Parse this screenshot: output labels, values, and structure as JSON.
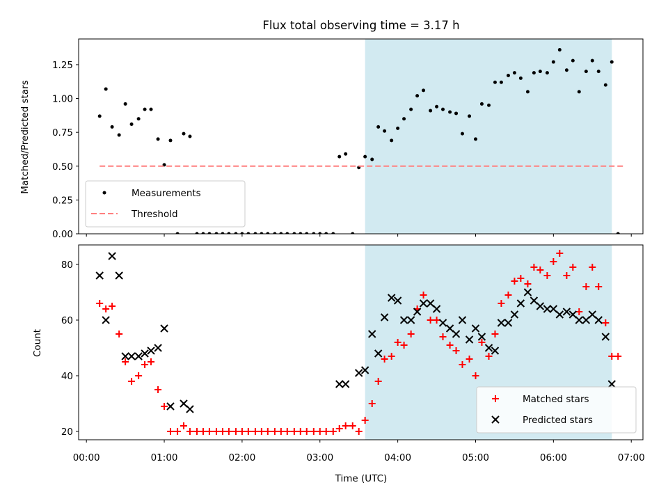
{
  "chart_data": {
    "title": "Flux total observing time = 3.17 h",
    "xlabel": "Time (UTC)",
    "x_tick_labels": [
      "00:00",
      "01:00",
      "02:00",
      "03:00",
      "04:00",
      "05:00",
      "06:00",
      "07:00"
    ],
    "x_tick_hours": [
      0,
      1,
      2,
      3,
      4,
      5,
      6,
      7
    ],
    "xlim_hours": [
      -0.1,
      7.15
    ],
    "highlight_region_hours": [
      3.58,
      6.75
    ],
    "highlight_color": "#add8e6",
    "panels": [
      {
        "type": "scatter",
        "ylabel": "Matched/Predicted stars",
        "ylim": [
          0,
          1.44
        ],
        "y_ticks": [
          0,
          0.25,
          0.5,
          0.75,
          1.0,
          1.25
        ],
        "y_tick_labels": [
          "0.00",
          "0.25",
          "0.50",
          "0.75",
          "1.00",
          "1.25"
        ],
        "legend_position": "lower-left",
        "series": [
          {
            "name": "Measurements",
            "marker": "dot",
            "color": "#000000",
            "points": [
              [
                0.17,
                0.87
              ],
              [
                0.25,
                1.07
              ],
              [
                0.33,
                0.79
              ],
              [
                0.42,
                0.73
              ],
              [
                0.5,
                0.96
              ],
              [
                0.58,
                0.81
              ],
              [
                0.67,
                0.85
              ],
              [
                0.75,
                0.92
              ],
              [
                0.83,
                0.92
              ],
              [
                0.92,
                0.7
              ],
              [
                1.0,
                0.51
              ],
              [
                1.08,
                0.69
              ],
              [
                1.17,
                0.0
              ],
              [
                1.25,
                0.74
              ],
              [
                1.33,
                0.72
              ],
              [
                1.42,
                0.0
              ],
              [
                1.5,
                0.0
              ],
              [
                1.58,
                0.0
              ],
              [
                1.67,
                0.0
              ],
              [
                1.75,
                0.0
              ],
              [
                1.83,
                0.0
              ],
              [
                1.92,
                0.0
              ],
              [
                2.0,
                0.0
              ],
              [
                2.08,
                0.0
              ],
              [
                2.17,
                0.0
              ],
              [
                2.25,
                0.0
              ],
              [
                2.33,
                0.0
              ],
              [
                2.42,
                0.0
              ],
              [
                2.5,
                0.0
              ],
              [
                2.58,
                0.0
              ],
              [
                2.67,
                0.0
              ],
              [
                2.75,
                0.0
              ],
              [
                2.83,
                0.0
              ],
              [
                2.92,
                0.0
              ],
              [
                3.0,
                0.0
              ],
              [
                3.08,
                0.0
              ],
              [
                3.17,
                0.0
              ],
              [
                3.25,
                0.57
              ],
              [
                3.33,
                0.59
              ],
              [
                3.42,
                0.0
              ],
              [
                3.5,
                0.49
              ],
              [
                3.58,
                0.57
              ],
              [
                3.67,
                0.55
              ],
              [
                3.75,
                0.79
              ],
              [
                3.83,
                0.76
              ],
              [
                3.92,
                0.69
              ],
              [
                4.0,
                0.78
              ],
              [
                4.08,
                0.85
              ],
              [
                4.17,
                0.92
              ],
              [
                4.25,
                1.02
              ],
              [
                4.33,
                1.06
              ],
              [
                4.42,
                0.91
              ],
              [
                4.5,
                0.94
              ],
              [
                4.58,
                0.92
              ],
              [
                4.67,
                0.9
              ],
              [
                4.75,
                0.89
              ],
              [
                4.83,
                0.74
              ],
              [
                4.92,
                0.87
              ],
              [
                5.0,
                0.7
              ],
              [
                5.08,
                0.96
              ],
              [
                5.17,
                0.95
              ],
              [
                5.25,
                1.12
              ],
              [
                5.33,
                1.12
              ],
              [
                5.42,
                1.17
              ],
              [
                5.5,
                1.19
              ],
              [
                5.58,
                1.15
              ],
              [
                5.67,
                1.05
              ],
              [
                5.75,
                1.19
              ],
              [
                5.83,
                1.2
              ],
              [
                5.92,
                1.19
              ],
              [
                6.0,
                1.27
              ],
              [
                6.08,
                1.36
              ],
              [
                6.17,
                1.21
              ],
              [
                6.25,
                1.28
              ],
              [
                6.33,
                1.05
              ],
              [
                6.42,
                1.2
              ],
              [
                6.5,
                1.28
              ],
              [
                6.58,
                1.2
              ],
              [
                6.67,
                1.1
              ],
              [
                6.75,
                1.27
              ],
              [
                6.83,
                0.0
              ]
            ]
          },
          {
            "name": "Threshold",
            "marker": "dashed-line",
            "color": "#ff7f7f",
            "points": [
              [
                0.17,
                0.5
              ],
              [
                6.92,
                0.5
              ]
            ]
          }
        ]
      },
      {
        "type": "scatter",
        "ylabel": "Count",
        "ylim": [
          17,
          87
        ],
        "y_ticks": [
          20,
          40,
          60,
          80
        ],
        "y_tick_labels": [
          "20",
          "40",
          "60",
          "80"
        ],
        "legend_position": "lower-right",
        "series": [
          {
            "name": "Matched stars",
            "marker": "plus",
            "color": "#ff0000",
            "points": [
              [
                0.17,
                66
              ],
              [
                0.25,
                64
              ],
              [
                0.33,
                65
              ],
              [
                0.42,
                55
              ],
              [
                0.5,
                45
              ],
              [
                0.58,
                38
              ],
              [
                0.67,
                40
              ],
              [
                0.75,
                44
              ],
              [
                0.83,
                45
              ],
              [
                0.92,
                35
              ],
              [
                1.0,
                29
              ],
              [
                1.08,
                20
              ],
              [
                1.17,
                20
              ],
              [
                1.25,
                22
              ],
              [
                1.33,
                20
              ],
              [
                1.42,
                20
              ],
              [
                1.5,
                20
              ],
              [
                1.58,
                20
              ],
              [
                1.67,
                20
              ],
              [
                1.75,
                20
              ],
              [
                1.83,
                20
              ],
              [
                1.92,
                20
              ],
              [
                2.0,
                20
              ],
              [
                2.08,
                20
              ],
              [
                2.17,
                20
              ],
              [
                2.25,
                20
              ],
              [
                2.33,
                20
              ],
              [
                2.42,
                20
              ],
              [
                2.5,
                20
              ],
              [
                2.58,
                20
              ],
              [
                2.67,
                20
              ],
              [
                2.75,
                20
              ],
              [
                2.83,
                20
              ],
              [
                2.92,
                20
              ],
              [
                3.0,
                20
              ],
              [
                3.08,
                20
              ],
              [
                3.17,
                20
              ],
              [
                3.25,
                21
              ],
              [
                3.33,
                22
              ],
              [
                3.42,
                22
              ],
              [
                3.5,
                20
              ],
              [
                3.58,
                24
              ],
              [
                3.67,
                30
              ],
              [
                3.75,
                38
              ],
              [
                3.83,
                46
              ],
              [
                3.92,
                47
              ],
              [
                4.0,
                52
              ],
              [
                4.08,
                51
              ],
              [
                4.17,
                55
              ],
              [
                4.25,
                64
              ],
              [
                4.33,
                69
              ],
              [
                4.42,
                60
              ],
              [
                4.5,
                60
              ],
              [
                4.58,
                54
              ],
              [
                4.67,
                51
              ],
              [
                4.75,
                49
              ],
              [
                4.83,
                44
              ],
              [
                4.92,
                46
              ],
              [
                5.0,
                40
              ],
              [
                5.08,
                52
              ],
              [
                5.17,
                47
              ],
              [
                5.25,
                55
              ],
              [
                5.33,
                66
              ],
              [
                5.42,
                69
              ],
              [
                5.5,
                74
              ],
              [
                5.58,
                75
              ],
              [
                5.67,
                73
              ],
              [
                5.75,
                79
              ],
              [
                5.83,
                78
              ],
              [
                5.92,
                76
              ],
              [
                6.0,
                81
              ],
              [
                6.08,
                84
              ],
              [
                6.17,
                76
              ],
              [
                6.25,
                79
              ],
              [
                6.33,
                63
              ],
              [
                6.42,
                72
              ],
              [
                6.5,
                79
              ],
              [
                6.58,
                72
              ],
              [
                6.67,
                59
              ],
              [
                6.75,
                47
              ],
              [
                6.83,
                47
              ]
            ]
          },
          {
            "name": "Predicted stars",
            "marker": "x",
            "color": "#000000",
            "points": [
              [
                0.17,
                76
              ],
              [
                0.25,
                60
              ],
              [
                0.33,
                83
              ],
              [
                0.42,
                76
              ],
              [
                0.5,
                47
              ],
              [
                0.58,
                47
              ],
              [
                0.67,
                47
              ],
              [
                0.75,
                48
              ],
              [
                0.83,
                49
              ],
              [
                0.92,
                50
              ],
              [
                1.0,
                57
              ],
              [
                1.08,
                29
              ],
              [
                1.25,
                30
              ],
              [
                1.33,
                28
              ],
              [
                3.25,
                37
              ],
              [
                3.33,
                37
              ],
              [
                3.5,
                41
              ],
              [
                3.58,
                42
              ],
              [
                3.67,
                55
              ],
              [
                3.75,
                48
              ],
              [
                3.83,
                61
              ],
              [
                3.92,
                68
              ],
              [
                4.0,
                67
              ],
              [
                4.08,
                60
              ],
              [
                4.17,
                60
              ],
              [
                4.25,
                63
              ],
              [
                4.33,
                66
              ],
              [
                4.42,
                66
              ],
              [
                4.5,
                64
              ],
              [
                4.58,
                59
              ],
              [
                4.67,
                57
              ],
              [
                4.75,
                55
              ],
              [
                4.83,
                60
              ],
              [
                4.92,
                53
              ],
              [
                5.0,
                57
              ],
              [
                5.08,
                54
              ],
              [
                5.17,
                50
              ],
              [
                5.25,
                49
              ],
              [
                5.33,
                59
              ],
              [
                5.42,
                59
              ],
              [
                5.5,
                62
              ],
              [
                5.58,
                66
              ],
              [
                5.67,
                70
              ],
              [
                5.75,
                67
              ],
              [
                5.83,
                65
              ],
              [
                5.92,
                64
              ],
              [
                6.0,
                64
              ],
              [
                6.08,
                62
              ],
              [
                6.17,
                63
              ],
              [
                6.25,
                62
              ],
              [
                6.33,
                60
              ],
              [
                6.42,
                60
              ],
              [
                6.5,
                62
              ],
              [
                6.58,
                60
              ],
              [
                6.67,
                54
              ],
              [
                6.75,
                37
              ]
            ]
          }
        ]
      }
    ]
  }
}
